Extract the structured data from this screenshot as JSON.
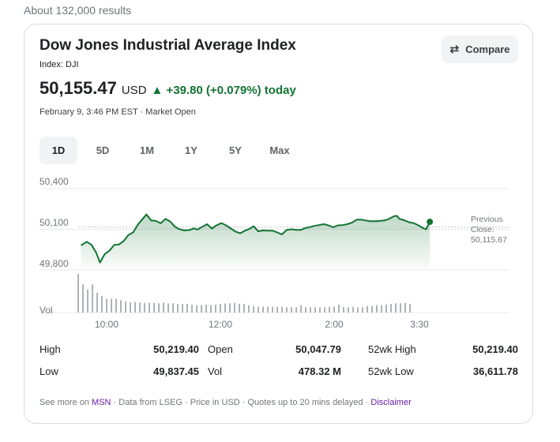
{
  "results_count": "About 132,000 results",
  "header": {
    "title": "Dow Jones Industrial Average Index",
    "ticker": "Index: DJI",
    "compare_label": "Compare",
    "price": "50,155.47",
    "currency": "USD",
    "change": "▲ +39.80 (+0.079%) today",
    "timestamp": "February 9, 3:46 PM EST · Market Open"
  },
  "range_tabs": [
    {
      "label": "1D",
      "selected": true
    },
    {
      "label": "5D",
      "selected": false
    },
    {
      "label": "1M",
      "selected": false
    },
    {
      "label": "1Y",
      "selected": false
    },
    {
      "label": "5Y",
      "selected": false
    },
    {
      "label": "Max",
      "selected": false
    }
  ],
  "colors": {
    "up": "#137333",
    "grid": "#e8eaed",
    "vol": "#9aa0a6"
  },
  "chart_data": {
    "type": "line",
    "y_ticks": [
      "50,400",
      "50,100",
      "49,800"
    ],
    "y_tick_values": [
      50400,
      50100,
      49800
    ],
    "x_ticks": [
      {
        "label": "10:00",
        "minute": 30
      },
      {
        "label": "12:00",
        "minute": 150
      },
      {
        "label": "2:00",
        "minute": 270
      },
      {
        "label": "3:30",
        "minute": 360
      }
    ],
    "x_domain_minutes": [
      0,
      455
    ],
    "vol_label": "Vol",
    "previous_close_label": [
      "Previous",
      "Close:",
      "50,115.67"
    ],
    "previous_close": 50115.67,
    "series": [
      [
        3,
        49981
      ],
      [
        9,
        50008
      ],
      [
        14,
        49985
      ],
      [
        19,
        49927
      ],
      [
        23,
        49854
      ],
      [
        28,
        49917
      ],
      [
        33,
        49942
      ],
      [
        38,
        49985
      ],
      [
        43,
        49988
      ],
      [
        48,
        50013
      ],
      [
        53,
        50058
      ],
      [
        58,
        50077
      ],
      [
        63,
        50135
      ],
      [
        68,
        50177
      ],
      [
        72,
        50210
      ],
      [
        77,
        50165
      ],
      [
        82,
        50162
      ],
      [
        87,
        50144
      ],
      [
        92,
        50177
      ],
      [
        97,
        50158
      ],
      [
        102,
        50119
      ],
      [
        107,
        50100
      ],
      [
        112,
        50092
      ],
      [
        117,
        50094
      ],
      [
        122,
        50106
      ],
      [
        126,
        50098
      ],
      [
        131,
        50119
      ],
      [
        136,
        50138
      ],
      [
        141,
        50106
      ],
      [
        146,
        50129
      ],
      [
        151,
        50146
      ],
      [
        156,
        50129
      ],
      [
        161,
        50106
      ],
      [
        166,
        50083
      ],
      [
        171,
        50071
      ],
      [
        176,
        50090
      ],
      [
        181,
        50104
      ],
      [
        185,
        50123
      ],
      [
        190,
        50085
      ],
      [
        195,
        50092
      ],
      [
        200,
        50090
      ],
      [
        205,
        50090
      ],
      [
        210,
        50077
      ],
      [
        215,
        50062
      ],
      [
        220,
        50096
      ],
      [
        225,
        50100
      ],
      [
        230,
        50096
      ],
      [
        235,
        50096
      ],
      [
        240,
        50110
      ],
      [
        244,
        50115
      ],
      [
        249,
        50125
      ],
      [
        254,
        50131
      ],
      [
        259,
        50138
      ],
      [
        264,
        50129
      ],
      [
        269,
        50115
      ],
      [
        274,
        50129
      ],
      [
        279,
        50131
      ],
      [
        284,
        50138
      ],
      [
        289,
        50150
      ],
      [
        294,
        50171
      ],
      [
        299,
        50171
      ],
      [
        303,
        50165
      ],
      [
        308,
        50160
      ],
      [
        313,
        50160
      ],
      [
        318,
        50162
      ],
      [
        323,
        50165
      ],
      [
        328,
        50177
      ],
      [
        333,
        50196
      ],
      [
        336,
        50200
      ],
      [
        339,
        50177
      ],
      [
        344,
        50167
      ],
      [
        349,
        50152
      ],
      [
        354,
        50146
      ],
      [
        359,
        50129
      ],
      [
        364,
        50108
      ],
      [
        367,
        50100
      ],
      [
        371,
        50155
      ]
    ],
    "volume_relative": [
      147,
      107,
      88,
      107,
      75,
      63,
      52,
      52,
      52,
      47,
      42,
      40,
      40,
      38,
      37,
      37,
      37,
      35,
      38,
      35,
      35,
      33,
      33,
      33,
      30,
      28,
      28,
      30,
      28,
      30,
      33,
      35,
      35,
      37,
      33,
      33,
      28,
      25,
      22,
      22,
      22,
      22,
      22,
      22,
      20,
      20,
      20,
      28,
      20,
      20,
      20,
      20,
      20,
      22,
      22,
      30,
      22,
      20,
      22,
      20,
      20,
      25,
      25,
      28,
      28,
      30,
      33,
      35,
      35,
      37,
      33
    ]
  },
  "stats": [
    [
      {
        "label": "High",
        "value": "50,219.40"
      },
      {
        "label": "Open",
        "value": "50,047.79"
      },
      {
        "label": "52wk High",
        "value": "50,219.40"
      }
    ],
    [
      {
        "label": "Low",
        "value": "49,837.45"
      },
      {
        "label": "Vol",
        "value": "478.32 M"
      },
      {
        "label": "52wk Low",
        "value": "36,611.78"
      }
    ]
  ],
  "footer": {
    "prefix": "See more on ",
    "msn": "MSN",
    "middle": " · Data from LSEG · Price in USD · Quotes up to 20 mins delayed · ",
    "disclaimer": "Disclaimer"
  }
}
